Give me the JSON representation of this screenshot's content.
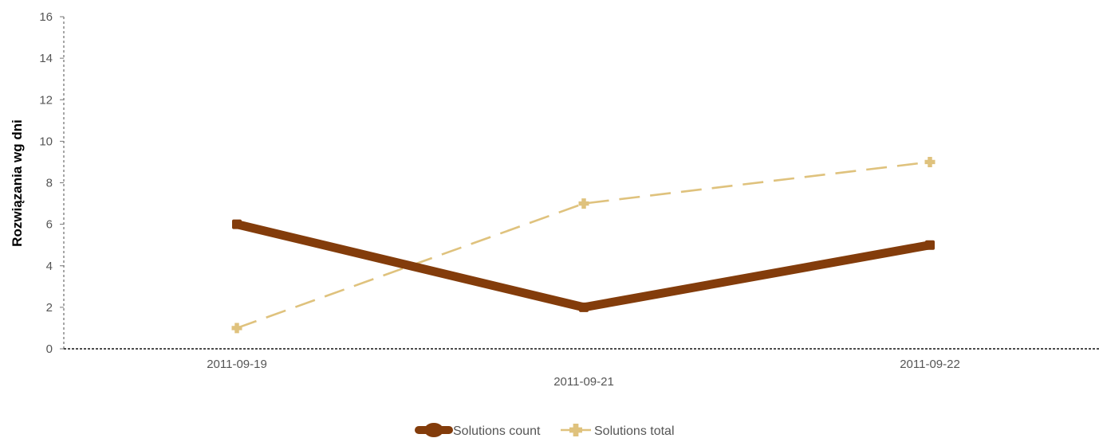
{
  "chart_data": {
    "type": "line",
    "title": "",
    "xlabel": "",
    "ylabel": "Rozwiązania wg dni",
    "categories": [
      "2011-09-19",
      "2011-09-21",
      "2011-09-22"
    ],
    "ylim": [
      0,
      16
    ],
    "yticks": [
      0,
      2,
      4,
      6,
      8,
      10,
      12,
      14,
      16
    ],
    "grid": false,
    "legend_position": "bottom",
    "series": [
      {
        "name": "Solutions count",
        "values": [
          6,
          2,
          5
        ],
        "color": "#833C0B",
        "style": "solid-thick"
      },
      {
        "name": "Solutions total",
        "values": [
          1,
          7,
          9
        ],
        "color": "#DFC27D",
        "style": "dashed"
      }
    ]
  }
}
